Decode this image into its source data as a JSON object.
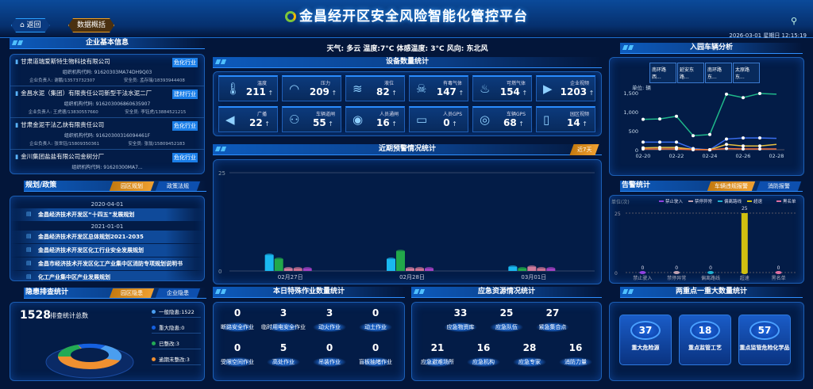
{
  "header": {
    "title": "金昌经开区安全风险智能化管控平台",
    "back_label": "返回",
    "overview_label": "数据概括",
    "datetime": "2026-03-01 星期日 12:15:19",
    "weather": "天气: 多云 温度:7°C 体感温度: 3°C 风向: 东北风"
  },
  "enterprise": {
    "title": "企业基本信息",
    "items": [
      {
        "name": "甘肃道瑞爱斯特生物科技有限公司",
        "badge": "危化行业",
        "code": "组织机构代码: 91620303MA74DH9Q03",
        "owner": "企业负责人: 谢鹏/13573732307",
        "safety": "安全员: 孟存瑞/18393944408"
      },
      {
        "name": "金昌水泥（集团）有限责任公司新型干法水泥二厂",
        "badge": "建材行业",
        "code": "组织机构代码: 916203006860635907",
        "owner": "企业负责人: 王虎德/13830557660",
        "safety": "安全员: 李钰虎/13884521215"
      },
      {
        "name": "甘肃金泥干法乙炔有限责任公司",
        "badge": "危化行业",
        "code": "组织机构代码: 91620300316094461F",
        "owner": "企业负责人: 张世钰/15809350361",
        "safety": "安全员: 张翁/15809452183"
      },
      {
        "name": "金川集团盐盐有限公司金树分厂",
        "badge": "危化行业",
        "code": "组织机构代码: 91620300MA7...",
        "owner": "",
        "safety": ""
      }
    ]
  },
  "policy": {
    "title": "规划/政策",
    "tabs": [
      "园区规划",
      "政策法规"
    ],
    "active_tab": 0,
    "items": [
      {
        "date": "2020-04-01",
        "name": "金昌经济技术开发区“十四五”发展规划"
      },
      {
        "date": "2021-01-01",
        "name": "金昌经济技术开发区总体规划2021-2035"
      },
      {
        "date": "",
        "name": "金昌经济技术开发区化工行业安全发展规划"
      },
      {
        "date": "",
        "name": "金昌市经济技术开发区化工产业集中区消防专项规划说明书"
      },
      {
        "date": "",
        "name": "化工产业集中区产业发展规划"
      }
    ]
  },
  "hazard": {
    "title": "隐患排查统计",
    "tabs": [
      "园区隐患",
      "企业隐患"
    ],
    "active_tab": 0,
    "total": "1528",
    "total_label": "排查统计总数",
    "legend": [
      {
        "label": "一般隐患:1522",
        "color": "#4a9ef0"
      },
      {
        "label": "重大隐患:0",
        "color": "#1560e0"
      },
      {
        "label": "已整改:3",
        "color": "#22aa55"
      },
      {
        "label": "逾期未整改:3",
        "color": "#f09030"
      }
    ]
  },
  "devices": {
    "title": "设备数量统计",
    "items": [
      {
        "label": "温度",
        "value": "211",
        "icon": "thermometer-icon",
        "glyph": "🌡"
      },
      {
        "label": "压力",
        "value": "209",
        "icon": "gauge-icon",
        "glyph": "◠"
      },
      {
        "label": "液位",
        "value": "82",
        "icon": "water-level-icon",
        "glyph": "≋"
      },
      {
        "label": "有毒气体",
        "value": "147",
        "icon": "skull-icon",
        "glyph": "☠"
      },
      {
        "label": "可燃气体",
        "value": "154",
        "icon": "flame-icon",
        "glyph": "♨"
      },
      {
        "label": "企业视频",
        "value": "1203",
        "icon": "video-camera-icon",
        "glyph": "▶"
      },
      {
        "label": "广播",
        "value": "22",
        "icon": "megaphone-icon",
        "glyph": "◀"
      },
      {
        "label": "车辆道闸",
        "value": "55",
        "icon": "people-icon",
        "glyph": "⚇"
      },
      {
        "label": "人员通闸",
        "value": "16",
        "icon": "location-person-icon",
        "glyph": "◉"
      },
      {
        "label": "人员GPS",
        "value": "0",
        "icon": "car-icon",
        "glyph": "▭"
      },
      {
        "label": "车辆GPS",
        "value": "68",
        "icon": "target-icon",
        "glyph": "◎"
      },
      {
        "label": "园区视频",
        "value": "14",
        "icon": "building-icon",
        "glyph": "▯"
      }
    ]
  },
  "warning": {
    "title": "近期预警情况统计",
    "range_label": "近7天"
  },
  "special_work": {
    "title": "本日特殊作业数量统计",
    "items": [
      {
        "label": "断路安全作业",
        "value": "0"
      },
      {
        "label": "临时用电安全作业",
        "value": "3"
      },
      {
        "label": "动火作业",
        "value": "3"
      },
      {
        "label": "动土作业",
        "value": "0"
      },
      {
        "label": "受限空间作业",
        "value": "0"
      },
      {
        "label": "高处作业",
        "value": "5"
      },
      {
        "label": "吊装作业",
        "value": "0"
      },
      {
        "label": "盲板抽堵作业",
        "value": "0"
      }
    ]
  },
  "emergency": {
    "title": "应急资源情况统计",
    "items": [
      {
        "label": "应急物资库",
        "value": "33"
      },
      {
        "label": "应急队伍",
        "value": "25"
      },
      {
        "label": "紧急集合点",
        "value": "27"
      },
      {
        "label": "应急避难场所",
        "value": "21"
      },
      {
        "label": "应急机构",
        "value": "16"
      },
      {
        "label": "应急专家",
        "value": "28"
      },
      {
        "label": "消防力量",
        "value": "16"
      }
    ]
  },
  "vehicle": {
    "title": "入园车辆分析",
    "gates": [
      "南环路西...",
      "延安东路...",
      "南环路东...",
      "太原路东..."
    ]
  },
  "alarm": {
    "title": "告警统计",
    "tabs": [
      "车辆违规报警",
      "消防报警"
    ],
    "active_tab": 0
  },
  "key": {
    "title": "两重点一重大数量统计",
    "items": [
      {
        "label": "重大危险源",
        "value": "37"
      },
      {
        "label": "重点监管工艺",
        "value": "18"
      },
      {
        "label": "重点监管危险化学品",
        "value": "57"
      }
    ]
  },
  "chart_data": [
    {
      "type": "bar",
      "title": "近期预警情况统计",
      "categories": [
        "02月27日",
        "02月28日",
        "03月01日"
      ],
      "ylim": [
        0,
        25
      ],
      "yticks": [
        0,
        25
      ],
      "series": [
        {
          "color": "#1ab8f0",
          "values": [
            4,
            3,
            1
          ]
        },
        {
          "color": "#22a84a",
          "values": [
            3,
            5,
            0
          ]
        },
        {
          "color": "#d07a9a",
          "values": [
            0,
            0,
            1
          ]
        },
        {
          "color": "#c87090",
          "values": [
            0,
            0,
            0
          ]
        },
        {
          "color": "#a040c0",
          "values": [
            0,
            0,
            0
          ]
        }
      ]
    },
    {
      "type": "line",
      "title": "入园车辆分析",
      "unit_label": "单位: 辆",
      "x": [
        "02-20",
        "02-21",
        "02-22",
        "02-23",
        "02-24",
        "02-25",
        "02-26",
        "02-27",
        "02-28"
      ],
      "xticks": [
        "02-20",
        "02-22",
        "02-24",
        "02-26",
        "02-28"
      ],
      "ylim": [
        0,
        1500
      ],
      "yticks": [
        "0",
        "500",
        "1,000",
        "1,500"
      ],
      "series": [
        {
          "color": "#1fb88a",
          "values": [
            800,
            810,
            880,
            370,
            400,
            1460,
            1370,
            1480,
            1460
          ]
        },
        {
          "color": "#3a6ef0",
          "values": [
            200,
            200,
            200,
            30,
            0,
            280,
            310,
            310,
            300
          ]
        },
        {
          "color": "#e8c040",
          "values": [
            50,
            60,
            60,
            10,
            0,
            140,
            100,
            100,
            140
          ]
        },
        {
          "color": "#f07040",
          "values": [
            20,
            20,
            20,
            0,
            0,
            30,
            20,
            20,
            20
          ]
        }
      ]
    },
    {
      "type": "bar",
      "title": "告警统计",
      "unit_label": "单位(次)",
      "categories": [
        "禁止驶入",
        "禁停异常",
        "偏离路线",
        "超速",
        "黑名单"
      ],
      "values": [
        0,
        0,
        0,
        25,
        0
      ],
      "ylim": [
        0,
        25
      ],
      "yticks": [
        0,
        25
      ],
      "colors": [
        "#9040e0",
        "#c0a0b0",
        "#20b0d0",
        "#d0c010",
        "#e070a0"
      ],
      "legend": [
        "禁止驶入",
        "禁停异常",
        "偏离路线",
        "超速",
        "黑名单"
      ],
      "legend_position": "top"
    }
  ]
}
